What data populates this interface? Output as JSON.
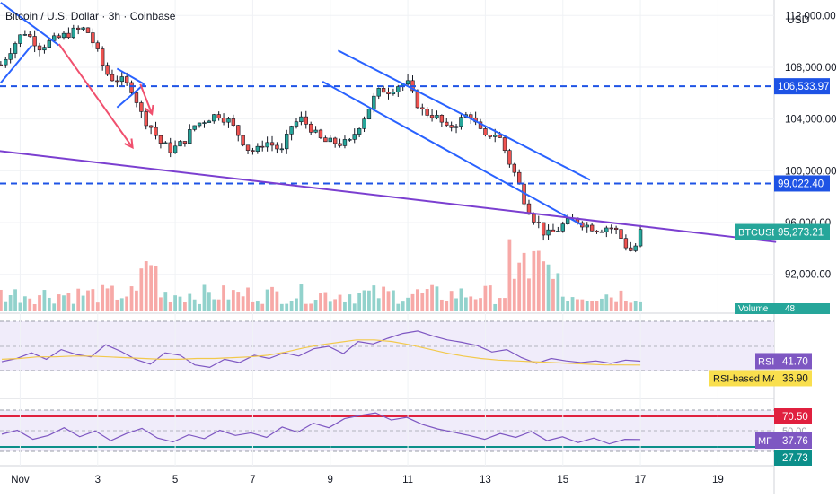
{
  "header": {
    "title": "Bitcoin / U.S. Dollar · 3h · Coinbase"
  },
  "price_axis": {
    "currency": "USD"
  },
  "chart_data": {
    "type": "candlestick",
    "title": "Bitcoin / U.S. Dollar · 3h · Coinbase",
    "symbol": "BTCUSD",
    "ylabel": "USD",
    "ylim": [
      89000,
      113200
    ],
    "y_ticks": [
      {
        "value": 92000,
        "label": "92,000.00"
      },
      {
        "value": 96000,
        "label": "96,000.00"
      },
      {
        "value": 100000,
        "label": "100,000.00"
      },
      {
        "value": 104000,
        "label": "104,000.00"
      },
      {
        "value": 108000,
        "label": "108,000.00"
      },
      {
        "value": 112000,
        "label": "112,000.00"
      }
    ],
    "x_ticks": [
      {
        "day": 1,
        "label": "Nov"
      },
      {
        "day": 3,
        "label": "3"
      },
      {
        "day": 5,
        "label": "5"
      },
      {
        "day": 7,
        "label": "7"
      },
      {
        "day": 9,
        "label": "9"
      },
      {
        "day": 11,
        "label": "11"
      },
      {
        "day": 13,
        "label": "13"
      },
      {
        "day": 15,
        "label": "15"
      },
      {
        "day": 17,
        "label": "17"
      },
      {
        "day": 19,
        "label": "19"
      }
    ],
    "x_range_days": [
      0.48,
      20.45
    ],
    "price_path": [
      [
        0.5,
        108200
      ],
      [
        0.8,
        109600
      ],
      [
        1.1,
        110800
      ],
      [
        1.5,
        109600
      ],
      [
        1.8,
        110000
      ],
      [
        2.1,
        110400
      ],
      [
        2.4,
        110800
      ],
      [
        2.7,
        111000
      ],
      [
        2.95,
        109500
      ],
      [
        3.1,
        108300
      ],
      [
        3.3,
        107200
      ],
      [
        3.6,
        107000
      ],
      [
        3.9,
        106300
      ],
      [
        4.15,
        104200
      ],
      [
        4.4,
        103300
      ],
      [
        4.6,
        102200
      ],
      [
        4.9,
        101600
      ],
      [
        5.2,
        102200
      ],
      [
        5.5,
        103500
      ],
      [
        5.8,
        104000
      ],
      [
        6.1,
        104400
      ],
      [
        6.4,
        103800
      ],
      [
        6.7,
        102500
      ],
      [
        6.9,
        101600
      ],
      [
        7.1,
        101500
      ],
      [
        7.3,
        102300
      ],
      [
        7.5,
        102000
      ],
      [
        7.75,
        101500
      ],
      [
        8.0,
        103500
      ],
      [
        8.25,
        104000
      ],
      [
        8.5,
        103300
      ],
      [
        8.7,
        102500
      ],
      [
        8.9,
        102200
      ],
      [
        9.1,
        102200
      ],
      [
        9.3,
        102100
      ],
      [
        9.5,
        102200
      ],
      [
        9.7,
        103300
      ],
      [
        9.9,
        104300
      ],
      [
        10.1,
        105500
      ],
      [
        10.3,
        106300
      ],
      [
        10.5,
        106200
      ],
      [
        10.8,
        106700
      ],
      [
        11.0,
        106700
      ],
      [
        11.2,
        105400
      ],
      [
        11.4,
        104500
      ],
      [
        11.6,
        104400
      ],
      [
        11.8,
        104000
      ],
      [
        12.0,
        103200
      ],
      [
        12.3,
        103800
      ],
      [
        12.6,
        104500
      ],
      [
        12.8,
        103300
      ],
      [
        13.0,
        102500
      ],
      [
        13.2,
        103000
      ],
      [
        13.4,
        102400
      ],
      [
        13.6,
        100800
      ],
      [
        13.8,
        99500
      ],
      [
        14.0,
        97800
      ],
      [
        14.2,
        96500
      ],
      [
        14.4,
        95800
      ],
      [
        14.55,
        95000
      ],
      [
        14.8,
        95300
      ],
      [
        15.0,
        95800
      ],
      [
        15.3,
        96300
      ],
      [
        15.6,
        95800
      ],
      [
        15.9,
        95500
      ],
      [
        16.2,
        95700
      ],
      [
        16.4,
        95300
      ],
      [
        16.6,
        94300
      ],
      [
        16.8,
        93700
      ],
      [
        16.95,
        94700
      ],
      [
        17.0,
        95273
      ]
    ],
    "series_last": {
      "name": "BTCUSD",
      "value": 95273.21,
      "label": "95,273.21"
    },
    "horizontal_lines": [
      {
        "name": "resistance",
        "value": 106533.97,
        "label": "106,533.97",
        "style": "dashed",
        "color": "#1e53e5"
      },
      {
        "name": "support",
        "value": 99022.4,
        "label": "99,022.40",
        "style": "dashed",
        "color": "#1e53e5"
      }
    ],
    "trendlines": [
      {
        "name": "upper-channel",
        "from": [
          9.2,
          109300
        ],
        "to": [
          15.7,
          99300
        ],
        "color": "#2962ff"
      },
      {
        "name": "lower-channel",
        "from": [
          8.8,
          106900
        ],
        "to": [
          15.5,
          95800
        ],
        "color": "#2962ff"
      },
      {
        "name": "long-support",
        "from": [
          -0.3,
          101800
        ],
        "to": [
          20.5,
          94500
        ],
        "color": "#7b3fd0"
      },
      {
        "name": "wedge-left-upper",
        "from": [
          0.5,
          113000
        ],
        "to": [
          2.0,
          109700
        ],
        "color": "#2962ff"
      },
      {
        "name": "wedge-left-lower",
        "from": [
          0.5,
          106800
        ],
        "to": [
          1.3,
          109700
        ],
        "color": "#2962ff"
      },
      {
        "name": "wedge-mid-upper",
        "from": [
          3.5,
          107900
        ],
        "to": [
          4.2,
          106700
        ],
        "color": "#2962ff"
      },
      {
        "name": "wedge-mid-lower",
        "from": [
          3.5,
          104900
        ],
        "to": [
          4.2,
          106700
        ],
        "color": "#2962ff"
      },
      {
        "name": "arrow-1",
        "from": [
          2.0,
          109800
        ],
        "to": [
          3.9,
          101800
        ],
        "color": "#f0506e",
        "arrow": true
      },
      {
        "name": "arrow-2",
        "from": [
          4.1,
          106700
        ],
        "to": [
          4.4,
          104400
        ],
        "color": "#f0506e",
        "arrow": true
      }
    ],
    "volume": {
      "label": "Volume",
      "value": "48"
    },
    "rsi": {
      "label": "RSI",
      "value": "41.70",
      "ma_label": "RSI-based MA",
      "ma_value": "36.90",
      "values": [
        41,
        45,
        52,
        44,
        56,
        50,
        47,
        62,
        54,
        44,
        38,
        52,
        49,
        37,
        34,
        44,
        40,
        49,
        45,
        52,
        48,
        57,
        60,
        51,
        66,
        63,
        70,
        76,
        79,
        73,
        68,
        65,
        61,
        53,
        56,
        46,
        39,
        45,
        42,
        40,
        42,
        39,
        43,
        41.7
      ],
      "ma_values": [
        44,
        45,
        47,
        47,
        48,
        48,
        47,
        46,
        45,
        44,
        44,
        45,
        45,
        46,
        47,
        49,
        53,
        58,
        62,
        65,
        68,
        68,
        66,
        62,
        57,
        52,
        48,
        45,
        43,
        42,
        41,
        40,
        39,
        38,
        37,
        37,
        36.9
      ]
    },
    "mfi": {
      "label": "MF",
      "value": "37.76",
      "upper_level": "70.50",
      "lower_level": "27.73",
      "mid_label": "50.00",
      "values": [
        46,
        52,
        38,
        44,
        56,
        42,
        51,
        36,
        47,
        55,
        40,
        34,
        45,
        39,
        52,
        44,
        48,
        41,
        57,
        49,
        63,
        56,
        70,
        75,
        79,
        68,
        72,
        61,
        54,
        49,
        44,
        38,
        47,
        41,
        50,
        36,
        42,
        33,
        40,
        31,
        38,
        37.76
      ]
    }
  }
}
